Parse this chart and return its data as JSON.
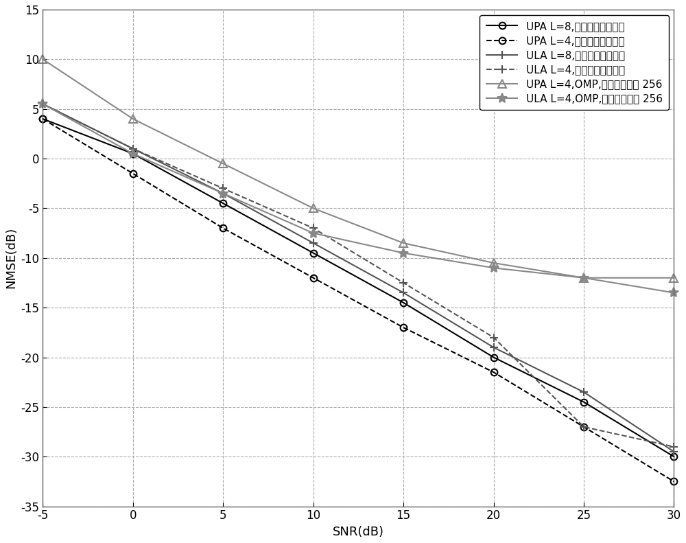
{
  "snr": [
    -5,
    0,
    5,
    10,
    15,
    20,
    25,
    30
  ],
  "series": [
    {
      "label": "UPA L=8,本发明提供的方法",
      "style": "solid",
      "marker": "o",
      "color": "#000000",
      "linewidth": 1.5,
      "markersize": 7,
      "markerfacecolor": "none",
      "values": [
        4.0,
        0.5,
        -4.5,
        -9.5,
        -14.5,
        -20.0,
        -24.5,
        -30.0
      ]
    },
    {
      "label": "UPA L=4,本发明提供的方法",
      "style": "dashed",
      "marker": "o",
      "color": "#000000",
      "linewidth": 1.5,
      "markersize": 7,
      "markerfacecolor": "none",
      "values": [
        4.0,
        -1.5,
        -7.0,
        -12.0,
        -17.0,
        -21.5,
        -27.0,
        -32.5
      ]
    },
    {
      "label": "ULA L=8,本发明提供的方法",
      "style": "solid",
      "marker": "P",
      "color": "#555555",
      "linewidth": 1.5,
      "markersize": 8,
      "markerfacecolor": "none",
      "values": [
        5.5,
        1.0,
        -3.5,
        -8.5,
        -13.5,
        -19.0,
        -23.5,
        -29.5
      ]
    },
    {
      "label": "ULA L=4,本发明提供的方法",
      "style": "dashed",
      "marker": "P",
      "color": "#555555",
      "linewidth": 1.5,
      "markersize": 8,
      "markerfacecolor": "none",
      "values": [
        5.5,
        1.0,
        -3.0,
        -7.0,
        -12.5,
        -18.0,
        -27.0,
        -29.0
      ]
    },
    {
      "label": "UPA L=4,OMP,角度量化数为 256",
      "style": "solid",
      "marker": "^",
      "color": "#888888",
      "linewidth": 1.5,
      "markersize": 9,
      "markerfacecolor": "none",
      "values": [
        10.0,
        4.0,
        -0.5,
        -5.0,
        -8.5,
        -10.5,
        -12.0,
        -12.0
      ]
    },
    {
      "label": "ULA L=4,OMP,角度量化数为 256",
      "style": "solid",
      "marker": "*",
      "color": "#888888",
      "linewidth": 1.5,
      "markersize": 10,
      "markerfacecolor": "#888888",
      "values": [
        5.5,
        0.5,
        -3.5,
        -7.5,
        -9.5,
        -11.0,
        -12.0,
        -13.5
      ]
    }
  ],
  "xlabel": "SNR(dB)",
  "ylabel": "NMSE(dB)",
  "xlim": [
    -5,
    30
  ],
  "ylim": [
    -35,
    15
  ],
  "xticks": [
    -5,
    0,
    5,
    10,
    15,
    20,
    25,
    30
  ],
  "yticks": [
    -35,
    -30,
    -25,
    -20,
    -15,
    -10,
    -5,
    0,
    5,
    10,
    15
  ],
  "grid_major_color": "#aaaaaa",
  "grid_minor_color": "#cccccc",
  "background_color": "#ffffff",
  "legend_fontsize": 11,
  "axis_label_fontsize": 13,
  "tick_fontsize": 12
}
